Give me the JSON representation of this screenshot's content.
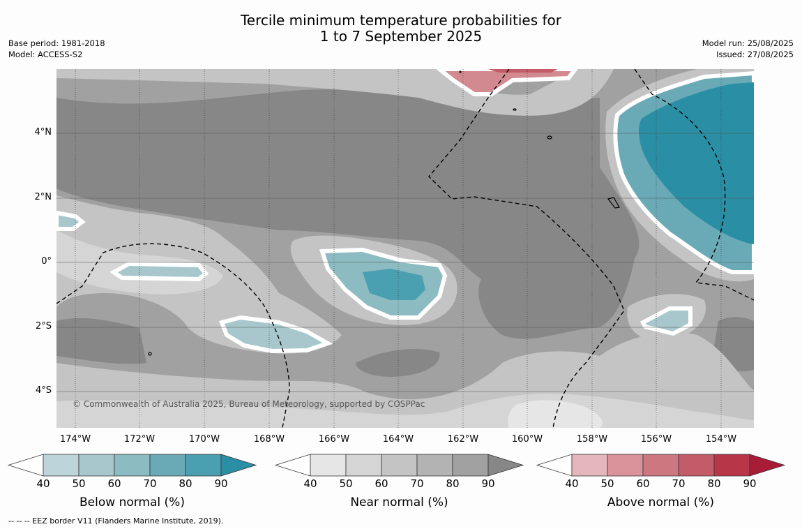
{
  "title_line1": "Tercile minimum temperature probabilities for",
  "title_line2": "1 to 7 September 2025",
  "base_period": "Base period: 1981-2018",
  "model": "Model: ACCESS-S2",
  "model_run": "Model run: 25/08/2025",
  "issued": "Issued: 27/08/2025",
  "copyright": "© Commonwealth of Australia 2025, Bureau of Meteorology, supported by COSPPac",
  "footnote": "--  --  -- EEZ border V11 (Flanders Marine Institute, 2019).",
  "x_ticks": [
    "174°W",
    "172°W",
    "170°W",
    "168°W",
    "166°W",
    "164°W",
    "162°W",
    "160°W",
    "158°W",
    "156°W",
    "154°W"
  ],
  "y_ticks": [
    "4°N",
    "2°N",
    "0°",
    "2°S",
    "4°S"
  ],
  "legends": [
    {
      "label": "Below normal (%)",
      "ticks": [
        "40",
        "50",
        "60",
        "70",
        "80",
        "90"
      ],
      "colors": [
        "#ffffff",
        "#bdd4da",
        "#a7c7cd",
        "#8cbbc2",
        "#6aaab7",
        "#4a9fb0",
        "#2a8fa5"
      ]
    },
    {
      "label": "Near normal (%)",
      "ticks": [
        "40",
        "50",
        "60",
        "70",
        "80",
        "90"
      ],
      "colors": [
        "#ffffff",
        "#e6e6e6",
        "#d5d5d5",
        "#c4c4c4",
        "#b3b3b3",
        "#a1a1a1",
        "#878787"
      ]
    },
    {
      "label": "Above normal (%)",
      "ticks": [
        "40",
        "50",
        "60",
        "70",
        "80",
        "90"
      ],
      "colors": [
        "#ffffff",
        "#e5b6bc",
        "#db939b",
        "#cd7781",
        "#c45b68",
        "#b73749",
        "#a81c38"
      ]
    }
  ]
}
